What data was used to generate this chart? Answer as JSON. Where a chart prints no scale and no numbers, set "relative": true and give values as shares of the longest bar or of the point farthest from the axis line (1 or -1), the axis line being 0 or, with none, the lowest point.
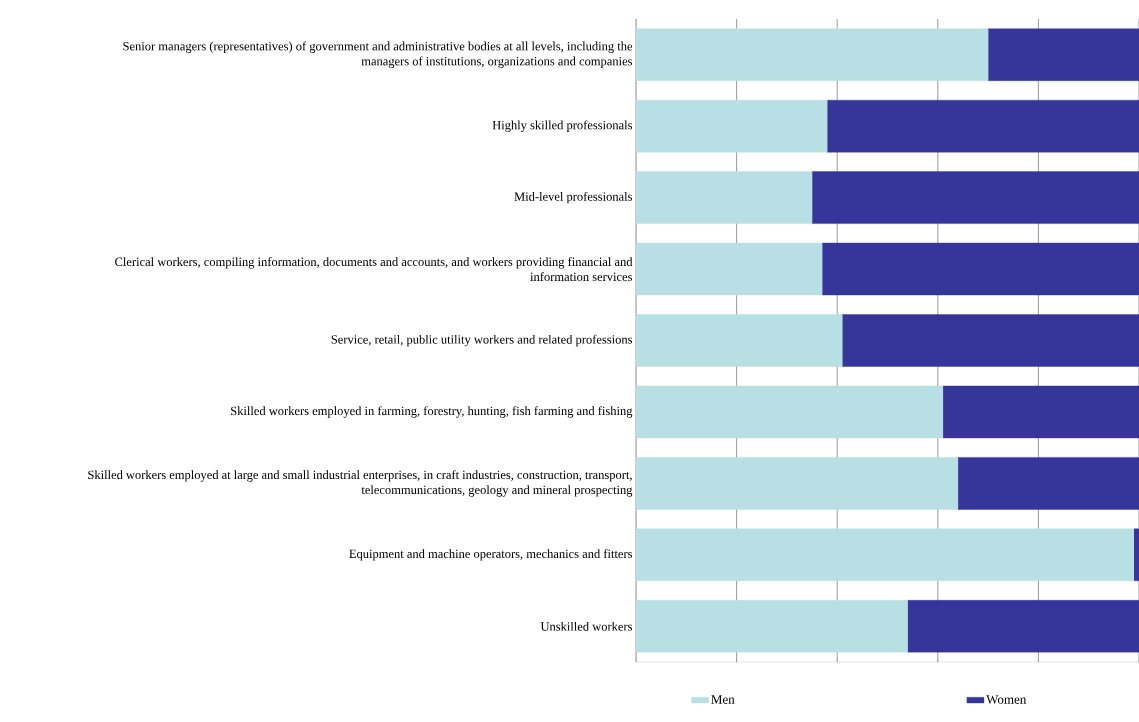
{
  "chart_data": {
    "type": "bar",
    "orientation": "horizontal",
    "stacked": true,
    "relative": true,
    "categories": [
      "Senior managers (representatives) of government and administrative bodies at all levels, including  the managers of institutions, organizations and companies",
      "Highly skilled professionals",
      "Mid-level professionals",
      "Clerical workers, compiling information, documents and accounts, and workers providing financial and information services",
      "Service, retail, public utility workers and related professions",
      "Skilled workers employed in farming, forestry, hunting, fish farming and fishing",
      "Skilled workers employed at large and small industrial enterprises, in craft industries, construction, transport, telecommunications, geology and mineral prospecting",
      "Equipment and machine operators, mechanics and fitters",
      "Unskilled workers"
    ],
    "series": [
      {
        "name": "Men",
        "color": "#b8dfe3",
        "values": [
          0.7,
          0.38,
          0.35,
          0.37,
          0.41,
          0.61,
          0.64,
          0.99,
          0.54
        ]
      },
      {
        "name": "Women",
        "color": "#35359a",
        "values": [
          0.3,
          0.62,
          0.65,
          0.63,
          0.59,
          0.39,
          0.36,
          0.01,
          0.46
        ]
      }
    ],
    "grid": "x",
    "legend": "bottom"
  }
}
